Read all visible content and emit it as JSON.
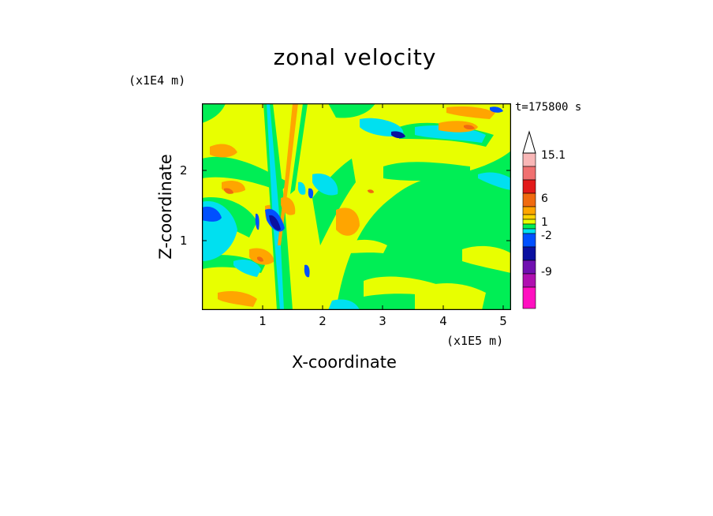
{
  "chart_data": {
    "type": "heatmap",
    "title": "zonal velocity",
    "xlabel": "X-coordinate",
    "ylabel": "Z-coordinate",
    "x_unit": "(x1E5 m)",
    "y_unit": "(x1E4 m)",
    "time_label": "t=175800 s",
    "xlim": [
      0,
      5.15
    ],
    "ylim": [
      0,
      2.95
    ],
    "x_ticks": [
      "1",
      "2",
      "3",
      "4",
      "5"
    ],
    "y_ticks": [
      "1",
      "2"
    ],
    "colorbar_labels": [
      "15.1",
      "6",
      "1",
      "-2",
      "-9"
    ],
    "colorbar_colors": [
      "#f9b7b7",
      "#f07070",
      "#e21a1a",
      "#f06a10",
      "#ffa500",
      "#ffd400",
      "#e8ff00",
      "#00ee55",
      "#00e0f0",
      "#0050ff",
      "#0a10a0",
      "#7010b0",
      "#b010b0",
      "#ff10c0"
    ]
  }
}
